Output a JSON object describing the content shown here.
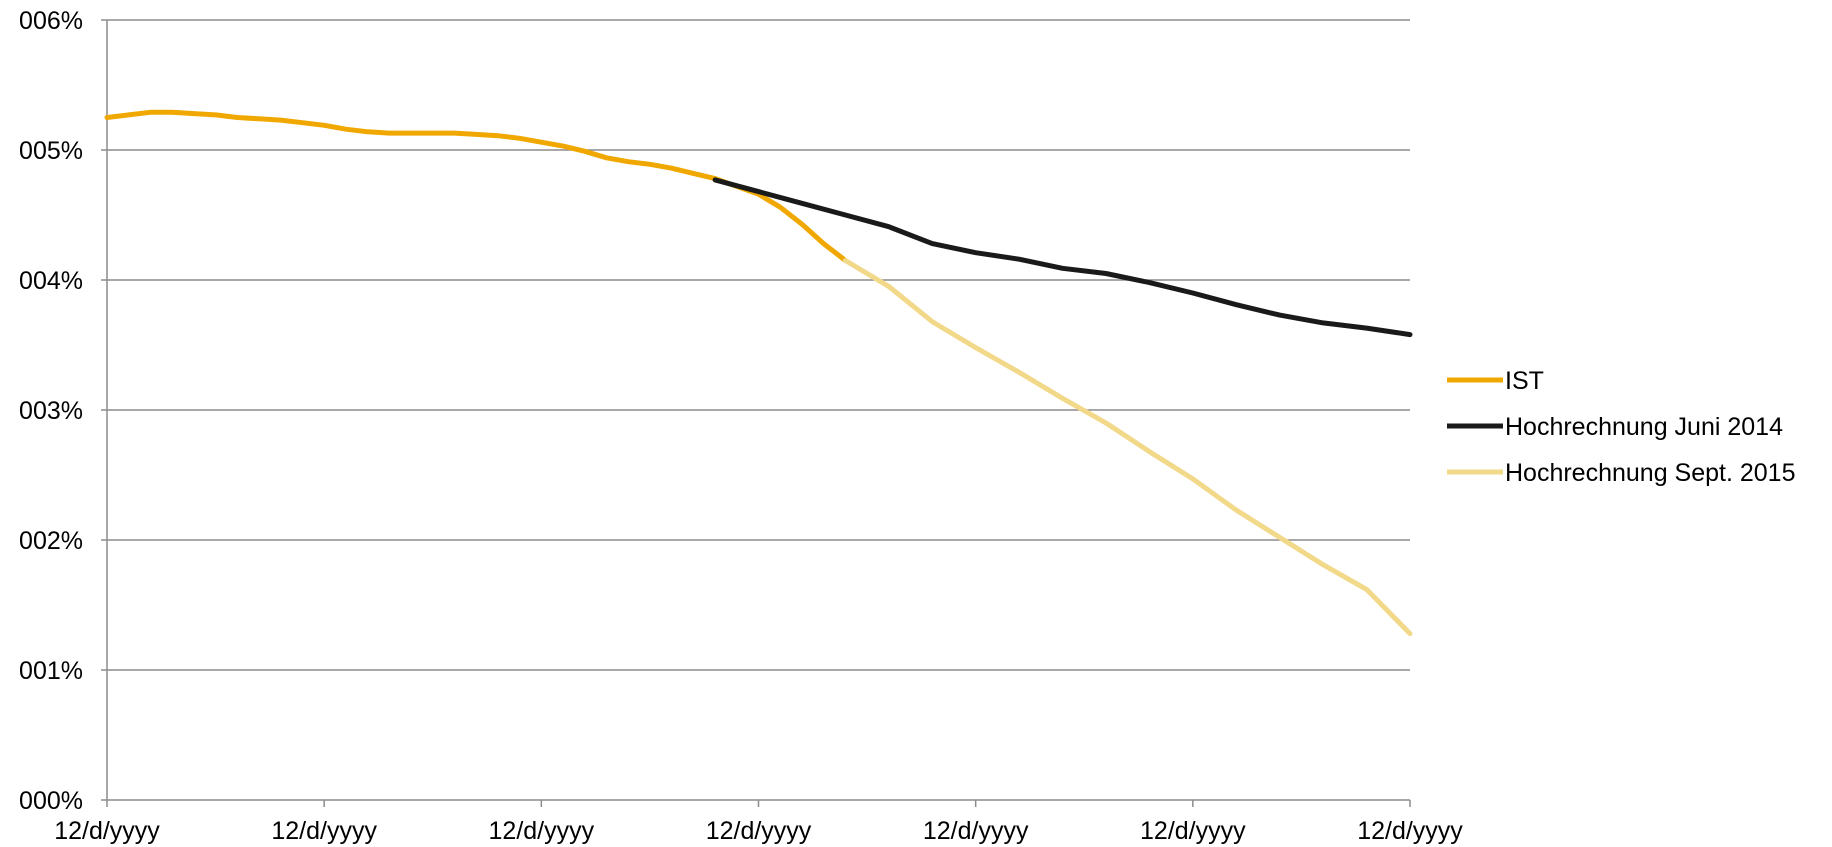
{
  "chart_data": {
    "type": "line",
    "title": "",
    "xlabel": "",
    "ylabel": "",
    "x_tick_labels": [
      "12/d/yyyy",
      "12/d/yyyy",
      "12/d/yyyy",
      "12/d/yyyy",
      "12/d/yyyy",
      "12/d/yyyy",
      "12/d/yyyy"
    ],
    "y_tick_labels": [
      "000%",
      "001%",
      "002%",
      "003%",
      "004%",
      "005%",
      "006%"
    ],
    "ylim": [
      0,
      0.06
    ],
    "xlim": [
      0,
      6
    ],
    "grid": "horizontal",
    "legend_position": "right",
    "series": [
      {
        "name": "IST",
        "color": "#F0A800",
        "x": [
          0,
          0.1,
          0.2,
          0.3,
          0.4,
          0.5,
          0.6,
          0.7,
          0.8,
          0.9,
          1.0,
          1.1,
          1.2,
          1.3,
          1.4,
          1.5,
          1.6,
          1.7,
          1.8,
          1.9,
          2.0,
          2.1,
          2.2,
          2.3,
          2.4,
          2.5,
          2.6,
          2.7,
          2.8,
          2.9,
          3.0,
          3.1,
          3.2,
          3.3,
          3.4
        ],
        "y": [
          0.0525,
          0.0527,
          0.0529,
          0.0529,
          0.0528,
          0.0527,
          0.0525,
          0.0524,
          0.0523,
          0.0521,
          0.0519,
          0.0516,
          0.0514,
          0.0513,
          0.0513,
          0.0513,
          0.0513,
          0.0512,
          0.0511,
          0.0509,
          0.0506,
          0.0503,
          0.0499,
          0.0494,
          0.0491,
          0.0489,
          0.0486,
          0.0482,
          0.0478,
          0.0472,
          0.0466,
          0.0456,
          0.0443,
          0.0428,
          0.0415
        ]
      },
      {
        "name": "Hochrechnung Juni 2014",
        "color": "#1A1A1A",
        "x": [
          2.8,
          3.0,
          3.2,
          3.4,
          3.6,
          3.8,
          4.0,
          4.2,
          4.4,
          4.6,
          4.8,
          5.0,
          5.2,
          5.4,
          5.6,
          5.8,
          6.0
        ],
        "y": [
          0.0477,
          0.0468,
          0.0459,
          0.045,
          0.0441,
          0.0428,
          0.0421,
          0.0416,
          0.0409,
          0.0405,
          0.0398,
          0.039,
          0.0381,
          0.0373,
          0.0367,
          0.0363,
          0.0358
        ]
      },
      {
        "name": "Hochrechnung Sept. 2015",
        "color": "#F2D98A",
        "x": [
          3.4,
          3.6,
          3.8,
          4.0,
          4.2,
          4.4,
          4.6,
          4.8,
          5.0,
          5.2,
          5.4,
          5.6,
          5.8,
          6.0
        ],
        "y": [
          0.0415,
          0.0395,
          0.0368,
          0.0348,
          0.0329,
          0.0309,
          0.029,
          0.0268,
          0.0247,
          0.0223,
          0.0202,
          0.0181,
          0.0162,
          0.0128
        ]
      }
    ]
  }
}
